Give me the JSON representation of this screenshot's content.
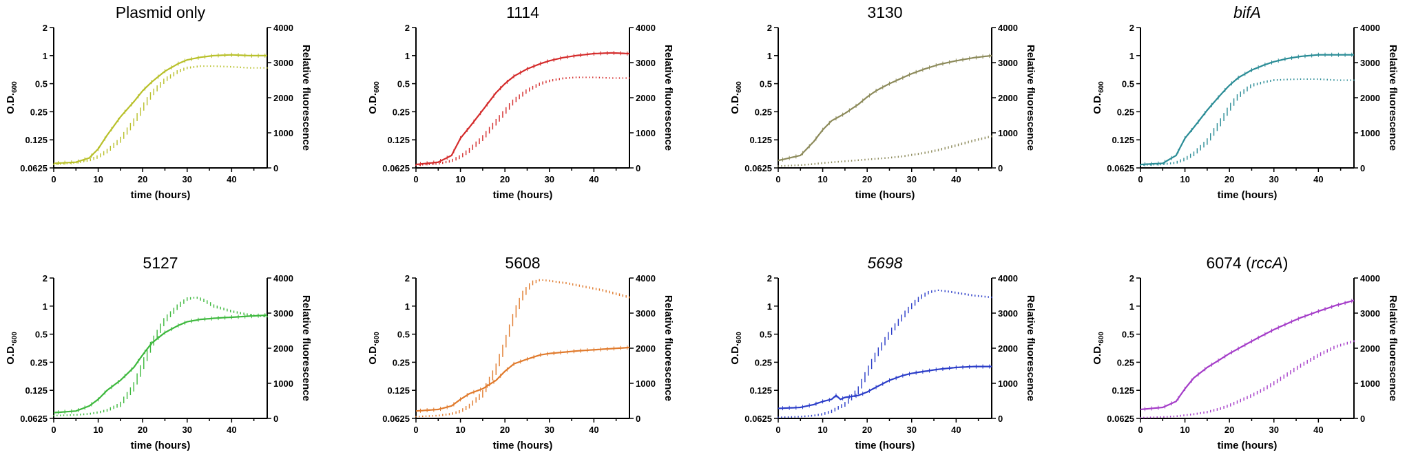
{
  "chart_data": [
    {
      "type": "line",
      "title": "Plasmid only",
      "title_italic": false,
      "color": "#b8c02a",
      "xlabel": "time (hours)",
      "ylabel_left": "O.D.600",
      "ylabel_right": "Relative fluorescence",
      "xlim": [
        0,
        48
      ],
      "xticks": [
        0,
        10,
        20,
        30,
        40
      ],
      "ylim_left": [
        0.0625,
        2
      ],
      "yticks_left": [
        0.0625,
        0.125,
        0.25,
        0.5,
        1,
        2
      ],
      "yticklabels_left": [
        "0.0625",
        "0.125",
        "0.25",
        "0.5",
        "1",
        "2"
      ],
      "ylim_right": [
        0,
        4000
      ],
      "yticks_right": [
        0,
        1000,
        2000,
        3000,
        4000
      ],
      "series": [
        {
          "name": "O.D.600",
          "axis": "left",
          "style": "solid",
          "x": [
            0,
            5,
            8,
            10,
            12,
            15,
            18,
            20,
            22,
            25,
            28,
            30,
            33,
            36,
            40,
            44,
            48
          ],
          "values": [
            0.07,
            0.072,
            0.08,
            0.1,
            0.14,
            0.22,
            0.32,
            0.42,
            0.52,
            0.68,
            0.82,
            0.9,
            0.96,
            1.0,
            1.02,
            1.0,
            1.0
          ]
        },
        {
          "name": "Relative fluorescence",
          "axis": "right",
          "style": "dotted",
          "x": [
            0,
            5,
            8,
            10,
            12,
            15,
            18,
            20,
            22,
            25,
            28,
            30,
            33,
            36,
            40,
            44,
            48
          ],
          "values": [
            100,
            150,
            220,
            320,
            480,
            800,
            1300,
            1700,
            2100,
            2500,
            2750,
            2850,
            2900,
            2900,
            2880,
            2850,
            2850
          ]
        }
      ]
    },
    {
      "type": "line",
      "title": "1114",
      "title_italic": false,
      "color": "#d42b2b",
      "xlabel": "time (hours)",
      "ylabel_left": "O.D.600",
      "ylabel_right": "Relative fluorescence",
      "xlim": [
        0,
        48
      ],
      "xticks": [
        0,
        10,
        20,
        30,
        40
      ],
      "ylim_left": [
        0.0625,
        2
      ],
      "yticks_left": [
        0.0625,
        0.125,
        0.25,
        0.5,
        1,
        2
      ],
      "yticklabels_left": [
        "0.0625",
        "0.125",
        "0.25",
        "0.5",
        "1",
        "2"
      ],
      "ylim_right": [
        0,
        4000
      ],
      "yticks_right": [
        0,
        1000,
        2000,
        3000,
        4000
      ],
      "series": [
        {
          "name": "O.D.600",
          "axis": "left",
          "style": "solid",
          "x": [
            0,
            5,
            8,
            10,
            12,
            15,
            18,
            20,
            22,
            25,
            28,
            30,
            33,
            36,
            40,
            44,
            48
          ],
          "values": [
            0.068,
            0.072,
            0.085,
            0.13,
            0.17,
            0.26,
            0.4,
            0.5,
            0.6,
            0.72,
            0.82,
            0.88,
            0.95,
            1.0,
            1.05,
            1.07,
            1.05
          ]
        },
        {
          "name": "Relative fluorescence",
          "axis": "right",
          "style": "dotted",
          "x": [
            0,
            5,
            8,
            10,
            12,
            15,
            18,
            20,
            22,
            25,
            28,
            30,
            33,
            36,
            40,
            44,
            48
          ],
          "values": [
            80,
            120,
            200,
            320,
            500,
            850,
            1300,
            1600,
            1900,
            2200,
            2400,
            2480,
            2550,
            2580,
            2580,
            2560,
            2560
          ]
        }
      ]
    },
    {
      "type": "line",
      "title": "3130",
      "title_italic": false,
      "color": "#8c8a5a",
      "xlabel": "time (hours)",
      "ylabel_left": "O.D.600",
      "ylabel_right": "Relative fluorescence",
      "xlim": [
        0,
        48
      ],
      "xticks": [
        0,
        10,
        20,
        30,
        40
      ],
      "ylim_left": [
        0.0625,
        2
      ],
      "yticks_left": [
        0.0625,
        0.125,
        0.25,
        0.5,
        1,
        2
      ],
      "yticklabels_left": [
        "0.0625",
        "0.125",
        "0.25",
        "0.5",
        "1",
        "2"
      ],
      "ylim_right": [
        0,
        4000
      ],
      "yticks_right": [
        0,
        1000,
        2000,
        3000,
        4000
      ],
      "series": [
        {
          "name": "O.D.600",
          "axis": "left",
          "style": "solid",
          "x": [
            0,
            5,
            8,
            10,
            12,
            15,
            18,
            20,
            22,
            25,
            28,
            30,
            33,
            36,
            40,
            44,
            48
          ],
          "values": [
            0.075,
            0.085,
            0.12,
            0.16,
            0.2,
            0.24,
            0.3,
            0.36,
            0.42,
            0.5,
            0.58,
            0.64,
            0.72,
            0.8,
            0.88,
            0.95,
            1.0
          ]
        },
        {
          "name": "Relative fluorescence",
          "axis": "right",
          "style": "dotted",
          "x": [
            0,
            5,
            8,
            10,
            12,
            15,
            18,
            20,
            22,
            25,
            28,
            30,
            33,
            36,
            40,
            44,
            48
          ],
          "values": [
            50,
            80,
            110,
            140,
            160,
            190,
            220,
            240,
            260,
            290,
            330,
            370,
            430,
            510,
            640,
            780,
            900
          ]
        }
      ]
    },
    {
      "type": "line",
      "title": "bifA",
      "title_italic": true,
      "color": "#2a8c96",
      "xlabel": "time (hours)",
      "ylabel_left": "O.D.600",
      "ylabel_right": "Relative fluorescence",
      "xlim": [
        0,
        48
      ],
      "xticks": [
        0,
        10,
        20,
        30,
        40
      ],
      "ylim_left": [
        0.0625,
        2
      ],
      "yticks_left": [
        0.0625,
        0.125,
        0.25,
        0.5,
        1,
        2
      ],
      "yticklabels_left": [
        "0.0625",
        "0.125",
        "0.25",
        "0.5",
        "1",
        "2"
      ],
      "ylim_right": [
        0,
        4000
      ],
      "yticks_right": [
        0,
        1000,
        2000,
        3000,
        4000
      ],
      "series": [
        {
          "name": "O.D.600",
          "axis": "left",
          "style": "solid",
          "x": [
            0,
            5,
            8,
            10,
            12,
            15,
            18,
            20,
            22,
            25,
            28,
            30,
            33,
            36,
            40,
            44,
            48
          ],
          "values": [
            0.068,
            0.07,
            0.085,
            0.13,
            0.17,
            0.26,
            0.38,
            0.48,
            0.58,
            0.7,
            0.8,
            0.86,
            0.93,
            0.98,
            1.02,
            1.02,
            1.02
          ]
        },
        {
          "name": "Relative fluorescence",
          "axis": "right",
          "style": "dotted",
          "x": [
            0,
            5,
            8,
            10,
            12,
            15,
            18,
            20,
            22,
            25,
            28,
            30,
            33,
            36,
            40,
            44,
            48
          ],
          "values": [
            80,
            100,
            150,
            250,
            400,
            750,
            1300,
            1700,
            2050,
            2350,
            2450,
            2500,
            2520,
            2530,
            2530,
            2500,
            2500
          ]
        }
      ]
    },
    {
      "type": "line",
      "title": "5127",
      "title_italic": false,
      "color": "#3db83d",
      "xlabel": "time (hours)",
      "ylabel_left": "O.D.600",
      "ylabel_right": "Relative fluorescence",
      "xlim": [
        0,
        48
      ],
      "xticks": [
        0,
        10,
        20,
        30,
        40
      ],
      "ylim_left": [
        0.0625,
        2
      ],
      "yticks_left": [
        0.0625,
        0.125,
        0.25,
        0.5,
        1,
        2
      ],
      "yticklabels_left": [
        "0.0625",
        "0.125",
        "0.25",
        "0.5",
        "1",
        "2"
      ],
      "ylim_right": [
        0,
        4000
      ],
      "yticks_right": [
        0,
        1000,
        2000,
        3000,
        4000
      ],
      "series": [
        {
          "name": "O.D.600",
          "axis": "left",
          "style": "solid",
          "x": [
            0,
            5,
            8,
            10,
            12,
            15,
            18,
            20,
            22,
            25,
            28,
            30,
            33,
            36,
            40,
            44,
            48
          ],
          "values": [
            0.072,
            0.075,
            0.085,
            0.1,
            0.125,
            0.16,
            0.22,
            0.3,
            0.4,
            0.52,
            0.62,
            0.68,
            0.72,
            0.74,
            0.76,
            0.78,
            0.8
          ]
        },
        {
          "name": "Relative fluorescence",
          "axis": "right",
          "style": "dotted",
          "x": [
            0,
            5,
            8,
            10,
            12,
            15,
            18,
            20,
            22,
            25,
            28,
            30,
            32,
            34,
            36,
            40,
            44,
            48
          ],
          "values": [
            80,
            100,
            130,
            170,
            230,
            400,
            900,
            1500,
            2100,
            2800,
            3200,
            3400,
            3450,
            3350,
            3200,
            3050,
            2950,
            2900
          ]
        }
      ]
    },
    {
      "type": "line",
      "title": "5608",
      "title_italic": false,
      "color": "#e07a2c",
      "xlabel": "time (hours)",
      "ylabel_left": "O.D.600",
      "ylabel_right": "Relative fluorescence",
      "xlim": [
        0,
        48
      ],
      "xticks": [
        0,
        10,
        20,
        30,
        40
      ],
      "ylim_left": [
        0.0625,
        2
      ],
      "yticks_left": [
        0.0625,
        0.125,
        0.25,
        0.5,
        1,
        2
      ],
      "yticklabels_left": [
        "0.0625",
        "0.125",
        "0.25",
        "0.5",
        "1",
        "2"
      ],
      "ylim_right": [
        0,
        4000
      ],
      "yticks_right": [
        0,
        1000,
        2000,
        3000,
        4000
      ],
      "series": [
        {
          "name": "O.D.600",
          "axis": "left",
          "style": "solid",
          "x": [
            0,
            5,
            8,
            10,
            12,
            15,
            18,
            20,
            22,
            25,
            28,
            30,
            33,
            36,
            40,
            44,
            48
          ],
          "values": [
            0.075,
            0.078,
            0.085,
            0.1,
            0.115,
            0.13,
            0.16,
            0.2,
            0.24,
            0.27,
            0.3,
            0.31,
            0.32,
            0.33,
            0.34,
            0.35,
            0.36
          ]
        },
        {
          "name": "Relative fluorescence",
          "axis": "right",
          "style": "dotted",
          "x": [
            0,
            5,
            8,
            10,
            12,
            15,
            18,
            20,
            22,
            24,
            26,
            28,
            30,
            34,
            38,
            42,
            48
          ],
          "values": [
            50,
            80,
            130,
            200,
            350,
            700,
            1400,
            2100,
            2900,
            3500,
            3850,
            3950,
            3920,
            3850,
            3750,
            3650,
            3450
          ]
        }
      ]
    },
    {
      "type": "line",
      "title": "5698",
      "title_italic": true,
      "color": "#2a3cc8",
      "xlabel": "time (hours)",
      "ylabel_left": "O.D.600",
      "ylabel_right": "Relative fluorescence",
      "xlim": [
        0,
        48
      ],
      "xticks": [
        0,
        10,
        20,
        30,
        40
      ],
      "ylim_left": [
        0.0625,
        2
      ],
      "yticks_left": [
        0.0625,
        0.125,
        0.25,
        0.5,
        1,
        2
      ],
      "yticklabels_left": [
        "0.0625",
        "0.125",
        "0.25",
        "0.5",
        "1",
        "2"
      ],
      "ylim_right": [
        0,
        4000
      ],
      "yticks_right": [
        0,
        1000,
        2000,
        3000,
        4000
      ],
      "series": [
        {
          "name": "O.D.600",
          "axis": "left",
          "style": "solid",
          "x": [
            0,
            5,
            8,
            10,
            12,
            13,
            14,
            15,
            18,
            20,
            22,
            25,
            28,
            30,
            33,
            36,
            40,
            44,
            48
          ],
          "values": [
            0.08,
            0.082,
            0.088,
            0.095,
            0.1,
            0.11,
            0.1,
            0.105,
            0.11,
            0.12,
            0.135,
            0.16,
            0.18,
            0.19,
            0.2,
            0.21,
            0.22,
            0.225,
            0.225
          ]
        },
        {
          "name": "Relative fluorescence",
          "axis": "right",
          "style": "dotted",
          "x": [
            0,
            5,
            8,
            10,
            12,
            15,
            18,
            20,
            22,
            25,
            28,
            30,
            32,
            34,
            36,
            38,
            40,
            44,
            48
          ],
          "values": [
            30,
            50,
            80,
            120,
            200,
            400,
            800,
            1300,
            1800,
            2400,
            2900,
            3200,
            3450,
            3600,
            3650,
            3620,
            3580,
            3500,
            3450
          ]
        }
      ]
    },
    {
      "type": "line",
      "title": "6074 (rccA)",
      "title_prefix": "6074 (",
      "title_italic_part": "rccA",
      "title_suffix": ")",
      "title_italic": false,
      "color": "#a43cc8",
      "xlabel": "time (hours)",
      "ylabel_left": "O.D.600",
      "ylabel_right": "Relative fluorescence",
      "xlim": [
        0,
        48
      ],
      "xticks": [
        0,
        10,
        20,
        30,
        40
      ],
      "ylim_left": [
        0.0625,
        2
      ],
      "yticks_left": [
        0.0625,
        0.125,
        0.25,
        0.5,
        1,
        2
      ],
      "yticklabels_left": [
        "0.0625",
        "0.125",
        "0.25",
        "0.5",
        "1",
        "2"
      ],
      "ylim_right": [
        0,
        4000
      ],
      "yticks_right": [
        0,
        1000,
        2000,
        3000,
        4000
      ],
      "series": [
        {
          "name": "O.D.600",
          "axis": "left",
          "style": "solid",
          "x": [
            0,
            5,
            8,
            10,
            12,
            15,
            18,
            20,
            22,
            25,
            28,
            30,
            33,
            36,
            40,
            44,
            48
          ],
          "values": [
            0.078,
            0.082,
            0.095,
            0.13,
            0.17,
            0.22,
            0.27,
            0.31,
            0.35,
            0.42,
            0.5,
            0.56,
            0.65,
            0.75,
            0.88,
            1.02,
            1.15
          ]
        },
        {
          "name": "Relative fluorescence",
          "axis": "right",
          "style": "dotted",
          "x": [
            0,
            5,
            8,
            10,
            12,
            15,
            18,
            20,
            22,
            25,
            28,
            30,
            33,
            36,
            40,
            44,
            48
          ],
          "values": [
            20,
            40,
            60,
            90,
            120,
            180,
            280,
            370,
            480,
            650,
            850,
            1000,
            1250,
            1500,
            1800,
            2050,
            2200
          ]
        }
      ]
    }
  ]
}
